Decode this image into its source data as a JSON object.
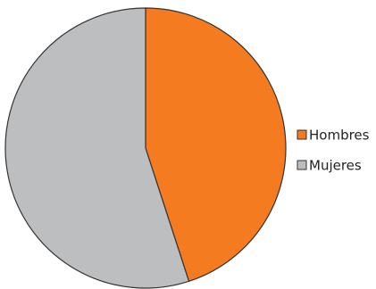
{
  "chart_data": {
    "type": "pie",
    "categories": [
      "Hombres",
      "Mujeres"
    ],
    "values": [
      45,
      55
    ],
    "colors": [
      "#f47b20",
      "#bcbec0"
    ],
    "legend": "right"
  }
}
